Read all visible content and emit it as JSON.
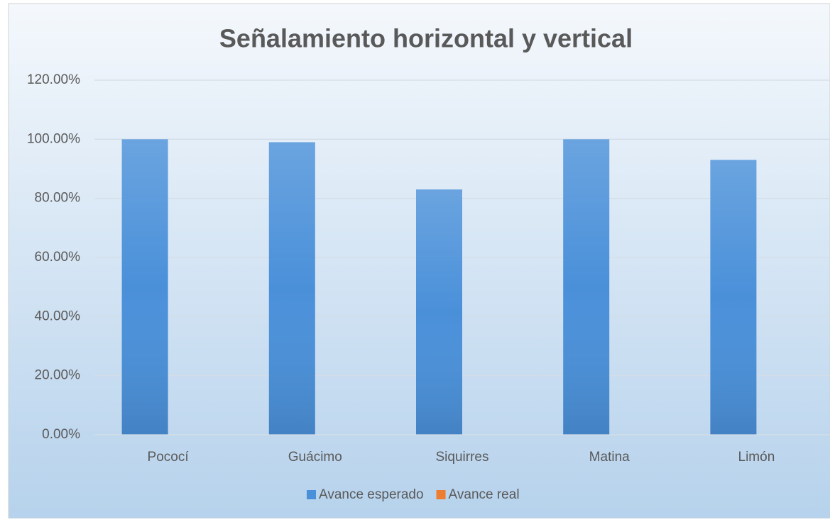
{
  "chart_data": {
    "type": "bar",
    "title": "Señalamiento horizontal y vertical",
    "categories": [
      "Pococí",
      "Guácimo",
      "Siquirres",
      "Matina",
      "Limón"
    ],
    "series": [
      {
        "name": "Avance esperado",
        "color": "#4a90d9",
        "values": [
          100,
          99,
          83,
          100,
          93
        ]
      },
      {
        "name": "Avance real",
        "color": "#ed7d31",
        "values": [
          0,
          0,
          0,
          0,
          0
        ]
      }
    ],
    "ylim": [
      0,
      120
    ],
    "yticks": [
      {
        "value": 0,
        "label": "0.00%"
      },
      {
        "value": 20,
        "label": "20.00%"
      },
      {
        "value": 40,
        "label": "40.00%"
      },
      {
        "value": 60,
        "label": "60.00%"
      },
      {
        "value": 80,
        "label": "80.00%"
      },
      {
        "value": 100,
        "label": "100.00%"
      },
      {
        "value": 120,
        "label": "120.00%"
      }
    ],
    "grid": true,
    "legend": "bottom"
  }
}
